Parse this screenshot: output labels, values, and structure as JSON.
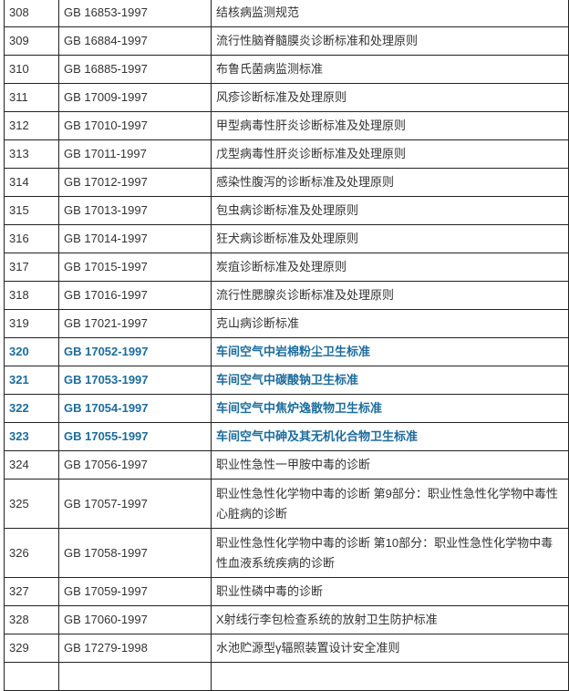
{
  "rows": [
    {
      "no": "308",
      "code": "GB 16853-1997",
      "title": "结核病监测规范",
      "highlight": false
    },
    {
      "no": "309",
      "code": "GB 16884-1997",
      "title": "流行性脑脊髓膜炎诊断标准和处理原则",
      "highlight": false
    },
    {
      "no": "310",
      "code": "GB 16885-1997",
      "title": "布鲁氏菌病监测标准",
      "highlight": false
    },
    {
      "no": "311",
      "code": "GB 17009-1997",
      "title": "风疹诊断标准及处理原则",
      "highlight": false
    },
    {
      "no": "312",
      "code": "GB 17010-1997",
      "title": "甲型病毒性肝炎诊断标准及处理原则",
      "highlight": false
    },
    {
      "no": "313",
      "code": "GB 17011-1997",
      "title": "戊型病毒性肝炎诊断标准及处理原则",
      "highlight": false
    },
    {
      "no": "314",
      "code": "GB 17012-1997",
      "title": "感染性腹泻的诊断标准及处理原则",
      "highlight": false
    },
    {
      "no": "315",
      "code": "GB 17013-1997",
      "title": "包虫病诊断标准及处理原则",
      "highlight": false
    },
    {
      "no": "316",
      "code": "GB 17014-1997",
      "title": "狂犬病诊断标准及处理原则",
      "highlight": false
    },
    {
      "no": "317",
      "code": "GB 17015-1997",
      "title": "炭疽诊断标准及处理原则",
      "highlight": false
    },
    {
      "no": "318",
      "code": "GB 17016-1997",
      "title": "流行性腮腺炎诊断标准及处理原则",
      "highlight": false
    },
    {
      "no": "319",
      "code": "GB 17021-1997",
      "title": "克山病诊断标准",
      "highlight": false
    },
    {
      "no": "320",
      "code": "GB 17052-1997",
      "title": "车间空气中岩棉粉尘卫生标准",
      "highlight": true
    },
    {
      "no": "321",
      "code": "GB 17053-1997",
      "title": "车间空气中碳酸钠卫生标准",
      "highlight": true
    },
    {
      "no": "322",
      "code": "GB 17054-1997",
      "title": "车间空气中焦炉逸散物卫生标准",
      "highlight": true
    },
    {
      "no": "323",
      "code": "GB 17055-1997",
      "title": "车间空气中砷及其无机化合物卫生标准",
      "highlight": true
    },
    {
      "no": "324",
      "code": "GB 17056-1997",
      "title": "职业性急性一甲胺中毒的诊断",
      "highlight": false
    },
    {
      "no": "325",
      "code": "GB 17057-1997",
      "title": "职业性急性化学物中毒的诊断  第9部分：职业性急性化学物中毒性心脏病的诊断",
      "highlight": false,
      "tall": true
    },
    {
      "no": "326",
      "code": "GB 17058-1997",
      "title": "职业性急性化学物中毒的诊断  第10部分：职业性急性化学物中毒性血液系统疾病的诊断",
      "highlight": false,
      "tall": true
    },
    {
      "no": "327",
      "code": "GB 17059-1997",
      "title": "职业性磷中毒的诊断",
      "highlight": false
    },
    {
      "no": "328",
      "code": "GB 17060-1997",
      "title": "X射线行李包检查系统的放射卫生防护标准",
      "highlight": false
    },
    {
      "no": "329",
      "code": "GB 17279-1998",
      "title": "水池贮源型γ辐照装置设计安全准则",
      "highlight": false
    },
    {
      "no": "",
      "code": "",
      "title": "",
      "highlight": false
    }
  ],
  "colors": {
    "text": "#333333",
    "highlight": "#1c6c9c",
    "border": "#222222"
  }
}
